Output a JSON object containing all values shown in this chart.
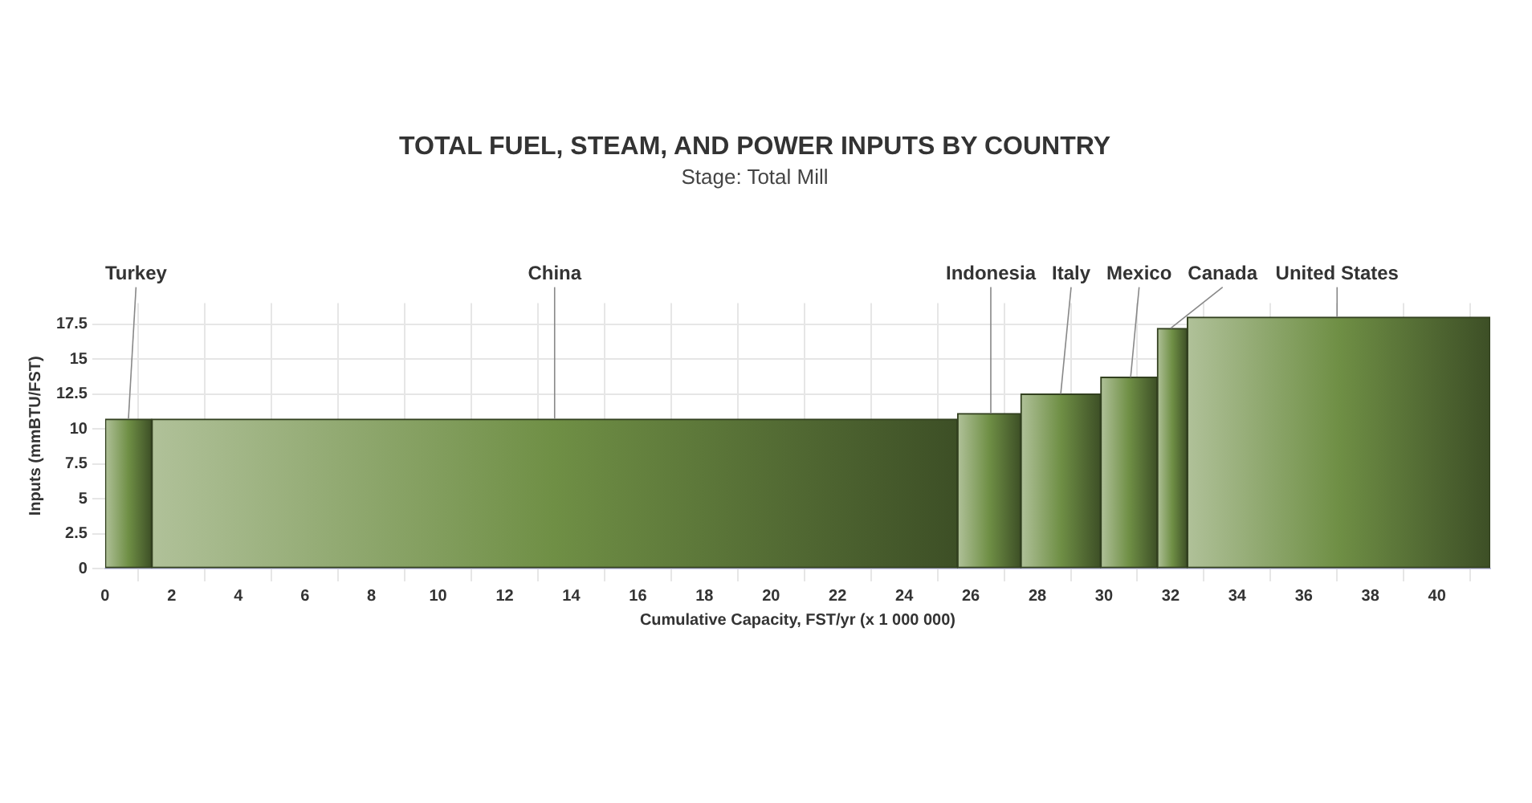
{
  "chart_data": {
    "type": "histogram",
    "title": "TOTAL FUEL, STEAM, AND POWER INPUTS BY COUNTRY",
    "subtitle": "Stage: Total Mill",
    "xlabel": "Cumulative Capacity, FST/yr (x 1 000 000)",
    "ylabel": "Inputs (mmBTU/FST)",
    "bins": [
      0,
      1.4,
      25.6,
      27.5,
      29.9,
      31.6,
      32.5,
      41.6
    ],
    "values": [
      10.7,
      10.7,
      11.1,
      12.5,
      13.7,
      17.2,
      18.0
    ],
    "color": "#6f8f45",
    "xlim": [
      0,
      41.6
    ],
    "xticks": [
      0,
      2,
      4,
      6,
      8,
      10,
      12,
      14,
      16,
      18,
      20,
      22,
      24,
      26,
      28,
      30,
      32,
      34,
      36,
      38,
      40
    ],
    "ylim": [
      0,
      19
    ],
    "yticks": [
      0,
      2.5,
      5,
      7.5,
      10,
      12.5,
      15,
      17.5
    ],
    "grid": true,
    "legend": false,
    "annotations": [
      {
        "text": "Turkey",
        "x": 0.7,
        "y": 10.7
      },
      {
        "text": "China",
        "x": 13.5,
        "y": 10.7
      },
      {
        "text": "Indonesia",
        "x": 26.6,
        "y": 11.1
      },
      {
        "text": "Italy",
        "x": 28.7,
        "y": 12.5
      },
      {
        "text": "Mexico",
        "x": 30.8,
        "y": 13.7
      },
      {
        "text": "Canada",
        "x": 32.0,
        "y": 17.2
      },
      {
        "text": "United States",
        "x": 37.0,
        "y": 18.0
      }
    ]
  }
}
